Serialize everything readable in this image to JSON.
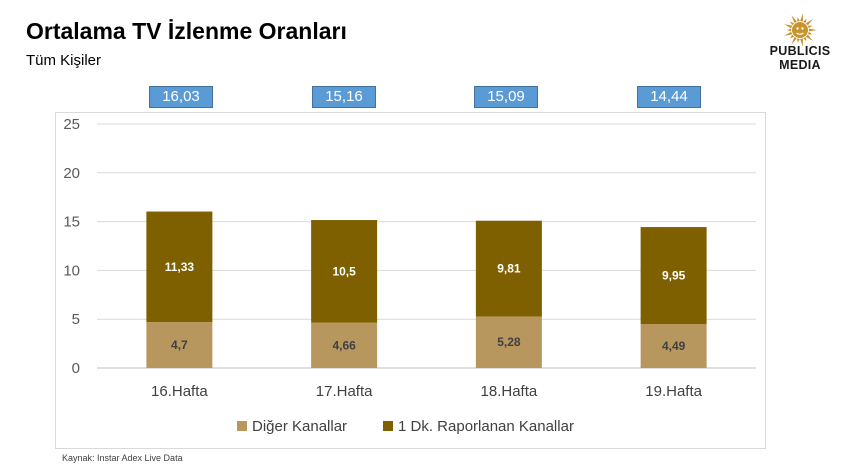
{
  "header": {
    "title": "Ortalama TV İzlenme Oranları",
    "subtitle": "Tüm Kişiler"
  },
  "logo": {
    "line1": "PUBLICIS",
    "line2": "MEDIA",
    "icon": "sun-icon",
    "color": "#c8942f"
  },
  "source": "Kaynak: Instar  Adex Live Data",
  "chart_data": {
    "type": "bar",
    "stacked": true,
    "categories": [
      "16.Hafta",
      "17.Hafta",
      "18.Hafta",
      "19.Hafta"
    ],
    "series": [
      {
        "name": "Diğer Kanallar",
        "values": [
          4.7,
          4.66,
          5.28,
          4.49
        ],
        "labels": [
          "4,7",
          "4,66",
          "5,28",
          "4,49"
        ],
        "color": "#b8975e",
        "label_color": "#404040"
      },
      {
        "name": "1 Dk. Raporlanan Kanallar",
        "values": [
          11.33,
          10.5,
          9.81,
          9.95
        ],
        "labels": [
          "11,33",
          "10,5",
          "9,81",
          "9,95"
        ],
        "color": "#7f6000",
        "label_color": "#ffffff"
      }
    ],
    "totals": [
      "16,03",
      "15,16",
      "15,09",
      "14,44"
    ],
    "total_box_color": "#5b9bd5",
    "ylim": [
      0,
      25
    ],
    "yticks": [
      0,
      5,
      10,
      15,
      20,
      25
    ],
    "grid": true,
    "legend_position": "bottom",
    "xlabel": "",
    "ylabel": ""
  }
}
